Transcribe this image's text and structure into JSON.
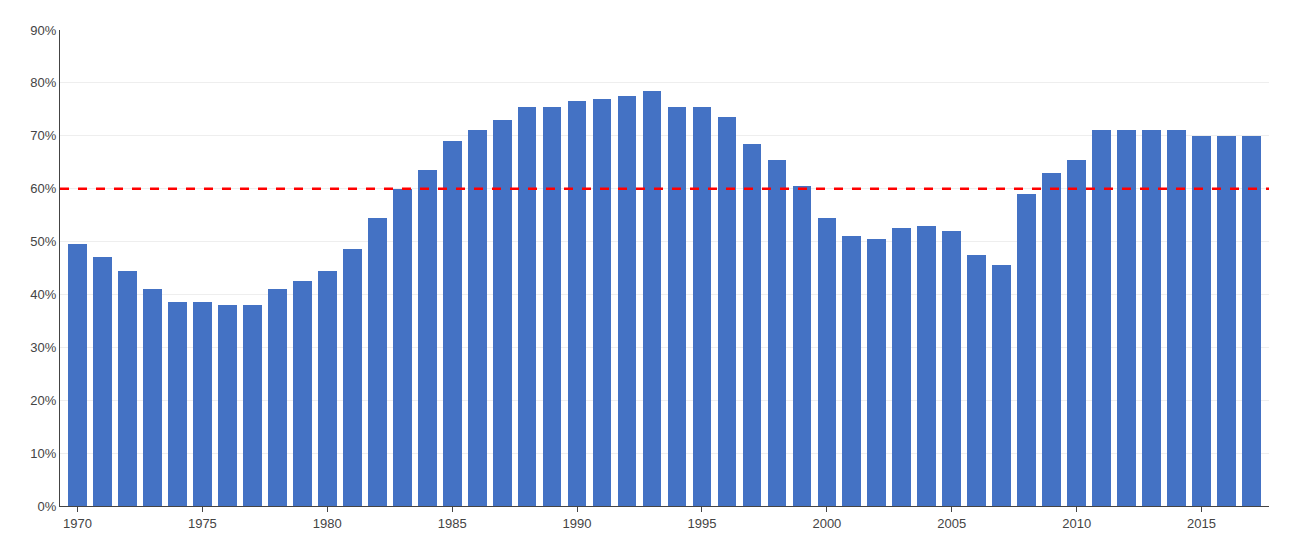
{
  "chart_data": {
    "type": "bar",
    "x": [
      1970,
      1971,
      1972,
      1973,
      1974,
      1975,
      1976,
      1977,
      1978,
      1979,
      1980,
      1981,
      1982,
      1983,
      1984,
      1985,
      1986,
      1987,
      1988,
      1989,
      1990,
      1991,
      1992,
      1993,
      1994,
      1995,
      1996,
      1997,
      1998,
      1999,
      2000,
      2001,
      2002,
      2003,
      2004,
      2005,
      2006,
      2007,
      2008,
      2009,
      2010,
      2011,
      2012,
      2013,
      2014,
      2015,
      2016,
      2017
    ],
    "values": [
      49.5,
      47.0,
      44.5,
      41.0,
      38.5,
      38.5,
      38.0,
      38.0,
      41.0,
      42.5,
      44.5,
      48.5,
      54.5,
      60.0,
      63.5,
      69.0,
      71.0,
      73.0,
      75.5,
      75.5,
      76.5,
      77.0,
      77.5,
      78.5,
      75.5,
      75.5,
      73.5,
      68.5,
      65.5,
      60.5,
      54.5,
      51.0,
      50.5,
      52.5,
      53.0,
      52.0,
      47.5,
      45.5,
      59.0,
      63.0,
      65.5,
      71.0,
      71.0,
      71.0,
      71.0,
      70.0,
      70.0,
      70.0
    ],
    "color": "#4472C4",
    "reference_line": {
      "value": 60.0,
      "color": "#FF0000",
      "line_style": "dashed"
    },
    "xlim": [
      1969.3,
      2017.7
    ],
    "xticks": [
      1970,
      1975,
      1980,
      1985,
      1990,
      1995,
      2000,
      2005,
      2010,
      2015
    ],
    "ylim": [
      0,
      90
    ],
    "yticks": [
      {
        "value": 0,
        "label": "0%"
      },
      {
        "value": 10,
        "label": "10%"
      },
      {
        "value": 20,
        "label": "20%"
      },
      {
        "value": 30,
        "label": "30%"
      },
      {
        "value": 40,
        "label": "40%"
      },
      {
        "value": 50,
        "label": "50%"
      },
      {
        "value": 60,
        "label": "60%"
      },
      {
        "value": 70,
        "label": "70%"
      },
      {
        "value": 80,
        "label": "80%"
      },
      {
        "value": 90,
        "label": "90%"
      }
    ],
    "grid": "y"
  }
}
